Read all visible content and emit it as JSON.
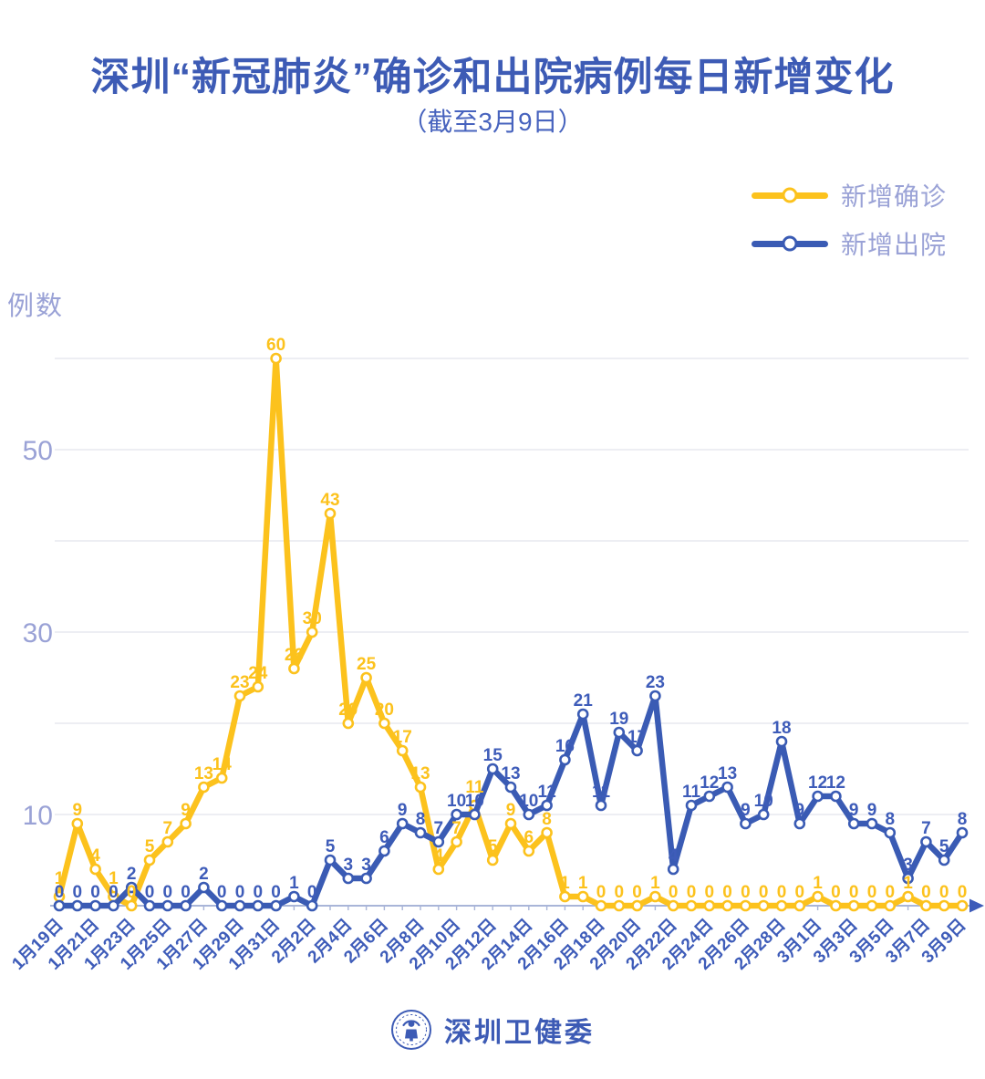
{
  "title": "深圳“新冠肺炎”确诊和出院病例每日新增变化",
  "subtitle": "（截至3月9日）",
  "legend": {
    "confirmed_label": "新增确诊",
    "discharged_label": "新增出院"
  },
  "footer": {
    "org_name": "深圳卫健委"
  },
  "colors": {
    "confirmed": "#fcc21d",
    "discharged": "#3a5bb4",
    "label_blue": "#3e5cb9",
    "muted_purple": "#9aa2d6",
    "gridline": "#e7e8ef",
    "axis": "#a9b5d8"
  },
  "chart_data": {
    "type": "line",
    "title": "深圳“新冠肺炎”确诊和出院病例每日新增变化（截至3月9日）",
    "ylabel": "例数",
    "ylim": [
      0,
      60
    ],
    "ytick_labels": [
      10,
      30,
      50
    ],
    "gridline_values": [
      10,
      20,
      30,
      40,
      50,
      60
    ],
    "grid": true,
    "legend_position": "top-right",
    "point_labels": true,
    "x_label_every": 2,
    "x": [
      "1月19日",
      "1月20日",
      "1月21日",
      "1月22日",
      "1月23日",
      "1月24日",
      "1月25日",
      "1月26日",
      "1月27日",
      "1月28日",
      "1月29日",
      "1月30日",
      "1月31日",
      "2月1日",
      "2月2日",
      "2月3日",
      "2月4日",
      "2月5日",
      "2月6日",
      "2月7日",
      "2月8日",
      "2月9日",
      "2月10日",
      "2月11日",
      "2月12日",
      "2月13日",
      "2月14日",
      "2月15日",
      "2月16日",
      "2月17日",
      "2月18日",
      "2月19日",
      "2月20日",
      "2月21日",
      "2月22日",
      "2月23日",
      "2月24日",
      "2月25日",
      "2月26日",
      "2月27日",
      "2月28日",
      "2月29日",
      "3月1日",
      "3月2日",
      "3月3日",
      "3月4日",
      "3月5日",
      "3月6日",
      "3月7日",
      "3月8日",
      "3月9日"
    ],
    "series": [
      {
        "name": "新增确诊",
        "color_key": "confirmed",
        "values": [
          1,
          9,
          4,
          1,
          0,
          5,
          7,
          9,
          13,
          14,
          23,
          24,
          60,
          26,
          30,
          43,
          20,
          25,
          20,
          17,
          13,
          4,
          7,
          11,
          5,
          9,
          6,
          8,
          1,
          1,
          0,
          0,
          0,
          1,
          0,
          0,
          0,
          0,
          0,
          0,
          0,
          0,
          1,
          0,
          0,
          0,
          0,
          1,
          0,
          0,
          0
        ]
      },
      {
        "name": "新增出院",
        "color_key": "discharged",
        "values": [
          0,
          0,
          0,
          0,
          2,
          0,
          0,
          0,
          2,
          0,
          0,
          0,
          0,
          1,
          0,
          5,
          3,
          3,
          6,
          9,
          8,
          7,
          10,
          10,
          15,
          13,
          10,
          11,
          16,
          21,
          11,
          19,
          17,
          23,
          4,
          11,
          12,
          13,
          9,
          10,
          18,
          9,
          12,
          12,
          9,
          9,
          8,
          3,
          7,
          5,
          8
        ]
      }
    ]
  }
}
